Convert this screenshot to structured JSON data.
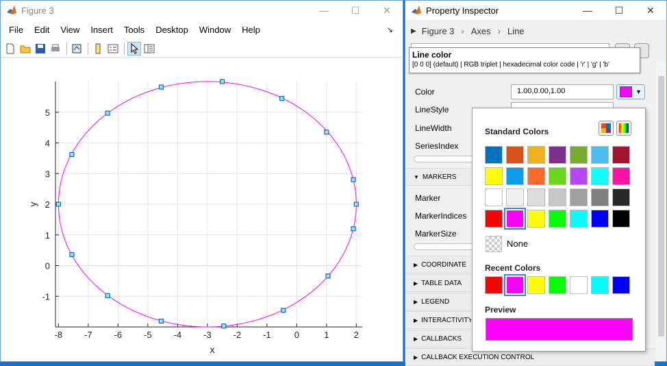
{
  "figure": {
    "title": "Figure 3",
    "menu": [
      "File",
      "Edit",
      "View",
      "Insert",
      "Tools",
      "Desktop",
      "Window",
      "Help"
    ],
    "dock_arrow": "↘",
    "toolbar_icons": [
      "new-file-icon",
      "open-folder-icon",
      "save-icon",
      "print-icon",
      "link-plot-icon",
      "colorbar-icon",
      "legend-icon",
      "pointer-icon",
      "property-inspector-icon"
    ],
    "window_buttons": {
      "minimize": "—",
      "maximize": "☐",
      "close": "✕"
    }
  },
  "chart_data": {
    "type": "line",
    "title": "",
    "xlabel": "x",
    "ylabel": "y",
    "xlim": [
      -8.1,
      2.2
    ],
    "ylim": [
      -2.0,
      6.0
    ],
    "xticks": [
      -8,
      -7,
      -6,
      -5,
      -4,
      -3,
      -2,
      -1,
      0,
      1,
      2
    ],
    "yticks": [
      -1,
      0,
      1,
      2,
      3,
      4,
      5
    ],
    "grid": true,
    "line_color": "#ff00ff",
    "marker_color": "#0072bd",
    "marker": "square",
    "series": [
      {
        "curve": {
          "center_x": -3.0,
          "center_y": 2.0,
          "radius_x": 5.0,
          "radius_y": 4.0
        },
        "markers": [
          [
            2.0,
            2.0
          ],
          [
            1.9,
            1.2
          ],
          [
            1.05,
            -0.34
          ],
          [
            -0.45,
            -1.46
          ],
          [
            -2.45,
            -1.97
          ],
          [
            -4.55,
            -1.81
          ],
          [
            -6.35,
            -0.98
          ],
          [
            -7.55,
            0.36
          ],
          [
            -8.0,
            2.0
          ],
          [
            -7.55,
            3.62
          ],
          [
            -6.35,
            4.97
          ],
          [
            -4.55,
            5.82
          ],
          [
            -2.5,
            6.0
          ],
          [
            -0.5,
            5.45
          ],
          [
            1.0,
            4.35
          ],
          [
            1.9,
            2.8
          ]
        ]
      }
    ]
  },
  "inspector": {
    "title": "Property Inspector",
    "breadcrumb": [
      "Figure 3",
      "Axes",
      "Line"
    ],
    "window_buttons": {
      "minimize": "—",
      "maximize": "☐",
      "close": "✕"
    },
    "tooltip": {
      "heading": "Line color",
      "body": "[0 0 0] (default) | RGB triplet | hexadecimal color code | 'r' | 'g' | 'b'"
    },
    "properties": {
      "color_label": "Color",
      "color_value": "1.00,0.00,1.00",
      "color_swatch": "#ff00ff",
      "linestyle_label": "LineStyle",
      "linewidth_label": "LineWidth",
      "seriesindex_label": "SeriesIndex",
      "marker_label": "Marker",
      "markerindices_label": "MarkerIndices",
      "markersize_label": "MarkerSize"
    },
    "sections": {
      "markers": "MARKERS",
      "coordinate": "COORDINATE",
      "table_data": "TABLE DATA",
      "legend": "LEGEND",
      "interactivity": "INTERACTIVITY",
      "callbacks": "CALLBACKS",
      "callback_exec": "CALLBACK EXECUTION CONTROL"
    },
    "color_picker": {
      "standard_title": "Standard Colors",
      "standard_colors": [
        [
          "#0072bd",
          "#d95319",
          "#edb120",
          "#7e2f8e",
          "#77ac30",
          "#4dbeee",
          "#a2142f"
        ],
        [
          "#ffff00",
          "#0b9cf0",
          "#ff6929",
          "#6ad51b",
          "#b746ff",
          "#10ffff",
          "#ff13a6"
        ],
        [
          "#ffffff",
          "#f0f0f0",
          "#dcdcdc",
          "#c8c8c8",
          "#a0a0a0",
          "#808080",
          "#282828"
        ],
        [
          "#ff0000",
          "#ff00ff",
          "#ffff00",
          "#00ff00",
          "#00ffff",
          "#0000ff",
          "#000000"
        ]
      ],
      "selected_standard": [
        3,
        1
      ],
      "none_label": "None",
      "recent_title": "Recent Colors",
      "recent_colors": [
        "#ff0000",
        "#ff00ff",
        "#ffff00",
        "#00ff00",
        "#ffffff",
        "#00ffff",
        "#0000ff"
      ],
      "selected_recent": 1,
      "preview_title": "Preview",
      "preview_color": "#ff00ff"
    }
  }
}
